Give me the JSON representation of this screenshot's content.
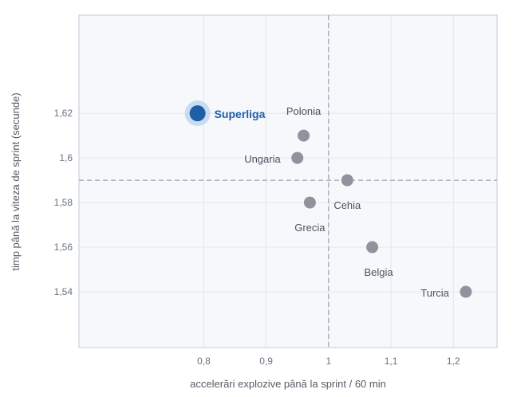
{
  "chart_data": {
    "type": "scatter",
    "title": "",
    "xlabel": "accelerări explozive până la sprint / 60 min",
    "ylabel": "timp până la viteza de sprint (secunde)",
    "xlim": [
      0.6,
      1.27
    ],
    "ylim": [
      1.515,
      1.664
    ],
    "xticks": [
      0.8,
      0.9,
      1.0,
      1.1,
      1.2
    ],
    "xtick_labels": [
      "0,8",
      "0,9",
      "1",
      "1,1",
      "1,2"
    ],
    "yticks": [
      1.54,
      1.56,
      1.58,
      1.6,
      1.62
    ],
    "ytick_labels": [
      "1,54",
      "1,56",
      "1,58",
      "1,6",
      "1,62"
    ],
    "grid": true,
    "reference_lines": {
      "x": 1.0,
      "y": 1.59
    },
    "points": [
      {
        "label": "Superliga",
        "x": 0.79,
        "y": 1.62,
        "highlight": true
      },
      {
        "label": "Polonia",
        "x": 0.96,
        "y": 1.61,
        "highlight": false
      },
      {
        "label": "Ungaria",
        "x": 0.95,
        "y": 1.6,
        "highlight": false
      },
      {
        "label": "Cehia",
        "x": 1.03,
        "y": 1.59,
        "highlight": false
      },
      {
        "label": "Grecia",
        "x": 0.97,
        "y": 1.58,
        "highlight": false
      },
      {
        "label": "Belgia",
        "x": 1.07,
        "y": 1.56,
        "highlight": false
      },
      {
        "label": "Turcia",
        "x": 1.22,
        "y": 1.54,
        "highlight": false
      }
    ],
    "colors": {
      "point": "#8e939e",
      "highlight": "#1f5fa8",
      "highlight_halo": "#c9dcf0",
      "plot_bg": "#f7f8fb",
      "grid": "#e3e6ec",
      "frame": "#c6d3e0",
      "ref_line": "#9aa1ad"
    }
  }
}
